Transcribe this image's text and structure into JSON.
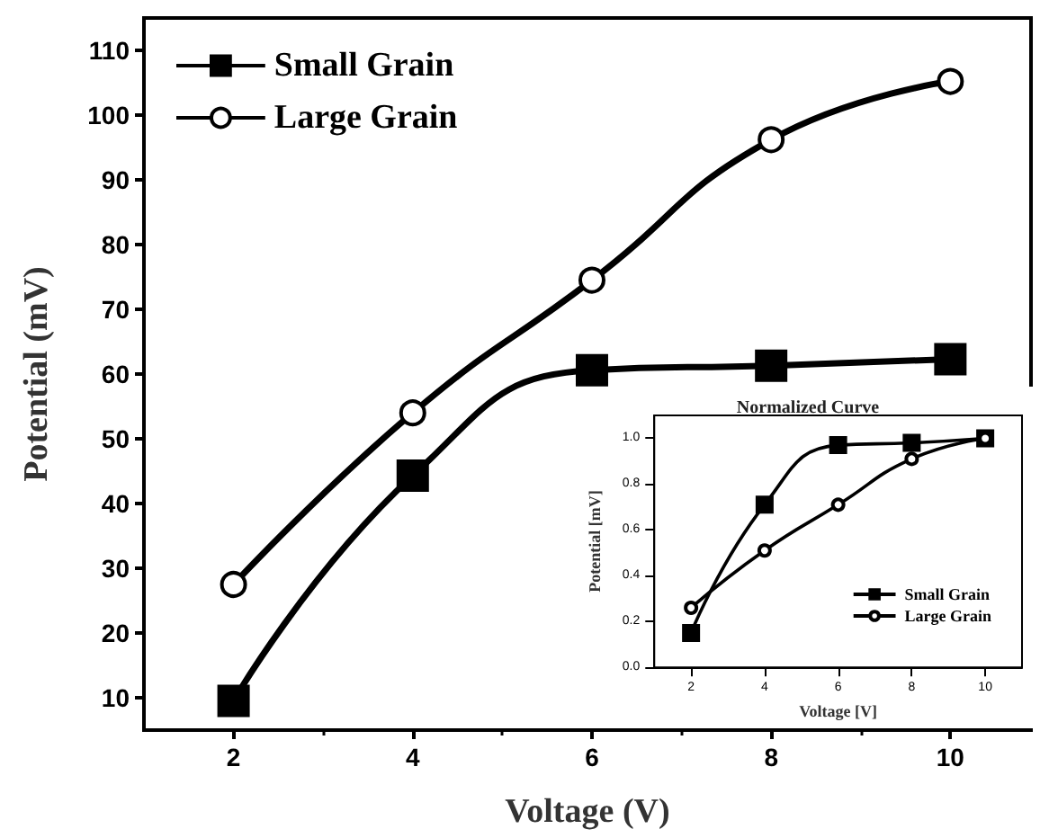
{
  "chart_data": [
    {
      "type": "line",
      "xlabel": "Voltage (V)",
      "ylabel": "Potential (mV)",
      "x": [
        2,
        4,
        6,
        8,
        10
      ],
      "xlim": [
        1,
        10.9
      ],
      "xticks": [
        2,
        4,
        6,
        8,
        10
      ],
      "ylim": [
        5,
        115
      ],
      "yticks": [
        10,
        20,
        30,
        40,
        50,
        60,
        70,
        80,
        90,
        100,
        110
      ],
      "legend": "top left",
      "grid": false,
      "series": [
        {
          "name": "Small Grain",
          "color": "#000000",
          "marker": "square",
          "values": [
            9.5,
            44.3,
            60.6,
            61.3,
            62.3
          ]
        },
        {
          "name": "Large Grain",
          "color": "#000000",
          "marker": "circle",
          "values": [
            27.5,
            54,
            74.5,
            96.2,
            105.2
          ]
        }
      ]
    },
    {
      "type": "line",
      "title": "Normalized Curve",
      "xlabel": "Voltage [V]",
      "ylabel": "Potential [mV]",
      "x": [
        2,
        4,
        6,
        8,
        10
      ],
      "xlim": [
        1,
        11
      ],
      "xticks": [
        2,
        4,
        6,
        8,
        10
      ],
      "ylim": [
        0,
        1.1
      ],
      "yticks": [
        {
          "value": 0,
          "label": "0.0"
        },
        {
          "value": 0.2,
          "label": "0.2"
        },
        {
          "value": 0.4,
          "label": "0.4"
        },
        {
          "value": 0.6,
          "label": "0.6"
        },
        {
          "value": 0.8,
          "label": "0.8"
        },
        {
          "value": 1,
          "label": "1.0"
        }
      ],
      "legend": "bottom right",
      "grid": false,
      "series": [
        {
          "name": "Small Grain",
          "color": "#000000",
          "marker": "square",
          "values": [
            0.15,
            0.71,
            0.97,
            0.98,
            1.0
          ]
        },
        {
          "name": "Large Grain",
          "color": "#000000",
          "marker": "circle",
          "values": [
            0.26,
            0.51,
            0.71,
            0.91,
            1.0
          ]
        }
      ]
    }
  ]
}
